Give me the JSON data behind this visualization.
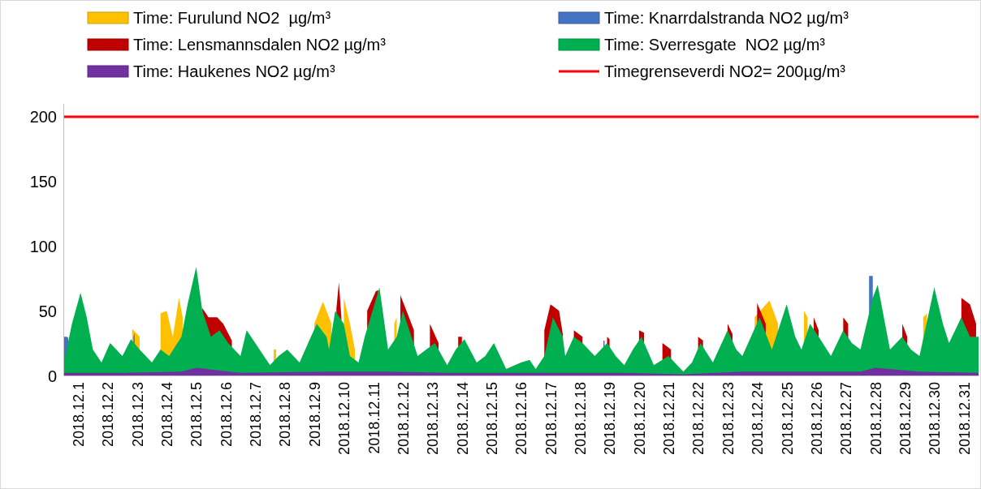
{
  "chart_data": {
    "type": "area",
    "xlim": [
      "2018-12-01T00:00",
      "2019-01-01T00:00"
    ],
    "ylim": [
      0,
      210
    ],
    "yticks": [
      0,
      50,
      100,
      150,
      200
    ],
    "xticks": [
      {
        "value": "2018-12-01T12:00",
        "label": "2018.12.1"
      },
      {
        "value": "2018-12-02T12:00",
        "label": "2018.12.2"
      },
      {
        "value": "2018-12-03T12:00",
        "label": "2018.12.3"
      },
      {
        "value": "2018-12-04T12:00",
        "label": "2018.12.4"
      },
      {
        "value": "2018-12-05T12:00",
        "label": "2018.12.5"
      },
      {
        "value": "2018-12-06T12:00",
        "label": "2018.12.6"
      },
      {
        "value": "2018-12-07T12:00",
        "label": "2018.12.7"
      },
      {
        "value": "2018-12-08T12:00",
        "label": "2018.12.8"
      },
      {
        "value": "2018-12-09T12:00",
        "label": "2018.12.9"
      },
      {
        "value": "2018-12-10T12:00",
        "label": "2018.12.10"
      },
      {
        "value": "2018-12-11T12:00",
        "label": "2018.12.11"
      },
      {
        "value": "2018-12-12T12:00",
        "label": "2018.12.12"
      },
      {
        "value": "2018-12-13T12:00",
        "label": "2018.12.13"
      },
      {
        "value": "2018-12-14T12:00",
        "label": "2018.12.14"
      },
      {
        "value": "2018-12-15T12:00",
        "label": "2018.12.15"
      },
      {
        "value": "2018-12-16T12:00",
        "label": "2018.12.16"
      },
      {
        "value": "2018-12-17T12:00",
        "label": "2018.12.17"
      },
      {
        "value": "2018-12-18T12:00",
        "label": "2018.12.18"
      },
      {
        "value": "2018-12-19T12:00",
        "label": "2018.12.19"
      },
      {
        "value": "2018-12-20T12:00",
        "label": "2018.12.20"
      },
      {
        "value": "2018-12-21T12:00",
        "label": "2018.12.21"
      },
      {
        "value": "2018-12-22T12:00",
        "label": "2018.12.22"
      },
      {
        "value": "2018-12-23T12:00",
        "label": "2018.12.23"
      },
      {
        "value": "2018-12-24T12:00",
        "label": "2018.12.24"
      },
      {
        "value": "2018-12-25T12:00",
        "label": "2018.12.25"
      },
      {
        "value": "2018-12-26T12:00",
        "label": "2018.12.26"
      },
      {
        "value": "2018-12-27T12:00",
        "label": "2018.12.27"
      },
      {
        "value": "2018-12-28T12:00",
        "label": "2018.12.28"
      },
      {
        "value": "2018-12-29T12:00",
        "label": "2018.12.29"
      },
      {
        "value": "2018-12-30T12:00",
        "label": "2018.12.30"
      },
      {
        "value": "2018-12-31T12:00",
        "label": "2018.12.31"
      }
    ],
    "grid": false,
    "legend": "top",
    "series": [
      {
        "name": "Time: Furulund NO2  µg/m³",
        "color": "#ffc000",
        "x": [
          "2018-12-03T08:00",
          "2018-12-03T14:00",
          "2018-12-03T20:00",
          "2018-12-04T07:00",
          "2018-12-04T12:00",
          "2018-12-04T17:00",
          "2018-12-04T22:00",
          "2018-12-05T01:00",
          "2018-12-06T12:00",
          "2018-12-08T03:00",
          "2018-12-08T05:00",
          "2018-12-09T00:00",
          "2018-12-09T12:00",
          "2018-12-09T19:00",
          "2018-12-10T02:00",
          "2018-12-10T11:00",
          "2018-12-10T12:00",
          "2018-12-10T17:00",
          "2018-12-10T21:00",
          "2018-12-11T12:00",
          "2018-12-12T05:00",
          "2018-12-12T07:00",
          "2018-12-15T00:00",
          "2018-12-24T10:00",
          "2018-12-24T22:00",
          "2018-12-25T05:00",
          "2018-12-25T15:00",
          "2018-12-26T02:00",
          "2018-12-26T05:00",
          "2018-12-28T00:00",
          "2018-12-30T03:00",
          "2018-12-30T06:00"
        ],
        "values": [
          36,
          30,
          null,
          48,
          50,
          30,
          60,
          45,
          null,
          20,
          20,
          null,
          40,
          57,
          40,
          null,
          60,
          40,
          20,
          null,
          40,
          45,
          null,
          45,
          58,
          40,
          null,
          50,
          45,
          null,
          45,
          48
        ]
      },
      {
        "name": "Time: Knarrdalstranda NO2 µg/m³",
        "color": "#4472c4",
        "x": [
          "2018-12-01T00:00",
          "2018-12-01T03:00",
          "2018-12-01T04:00",
          "2018-12-02T00:00",
          "2018-12-03T09:00",
          "2018-12-03T10:00",
          "2018-12-10T00:00",
          "2018-12-19T07:00",
          "2018-12-19T08:00",
          "2018-12-24T00:00",
          "2018-12-28T07:00",
          "2018-12-28T10:00"
        ],
        "values": [
          30,
          30,
          29,
          null,
          30,
          33,
          null,
          27,
          27,
          null,
          77,
          77
        ]
      },
      {
        "name": "Time: Lensmannsdalen NO2 µg/m³",
        "color": "#c00000",
        "x": [
          "2018-12-05T17:00",
          "2018-12-05T22:00",
          "2018-12-06T05:00",
          "2018-12-06T10:00",
          "2018-12-06T17:00",
          "2018-12-08T00:00",
          "2018-12-10T06:00",
          "2018-12-10T08:00",
          "2018-12-10T10:00",
          "2018-12-10T23:00",
          "2018-12-11T07:00",
          "2018-12-11T14:00",
          "2018-12-11T16:00",
          "2018-12-11T23:00",
          "2018-12-12T10:00",
          "2018-12-12T17:00",
          "2018-12-12T21:00",
          "2018-12-13T05:00",
          "2018-12-13T10:00",
          "2018-12-13T17:00",
          "2018-12-14T00:00",
          "2018-12-14T09:00",
          "2018-12-14T12:00",
          "2018-12-16T00:00",
          "2018-12-17T07:00",
          "2018-12-17T12:00",
          "2018-12-17T19:00",
          "2018-12-17T22:00",
          "2018-12-18T03:00",
          "2018-12-18T07:00",
          "2018-12-18T14:00",
          "2018-12-19T00:00",
          "2018-12-19T10:00",
          "2018-12-19T12:00",
          "2018-12-20T00:00",
          "2018-12-20T12:00",
          "2018-12-20T16:00",
          "2018-12-21T00:00",
          "2018-12-21T07:00",
          "2018-12-21T14:00",
          "2018-12-22T00:00",
          "2018-12-22T12:00",
          "2018-12-22T16:00",
          "2018-12-23T00:00",
          "2018-12-23T12:00",
          "2018-12-23T16:00",
          "2018-12-24T00:00",
          "2018-12-24T12:00",
          "2018-12-24T19:00",
          "2018-12-26T00:00",
          "2018-12-26T10:00",
          "2018-12-26T14:00",
          "2018-12-27T00:00",
          "2018-12-27T10:00",
          "2018-12-27T14:00",
          "2018-12-29T00:00",
          "2018-12-29T10:00",
          "2018-12-29T14:00",
          "2018-12-31T00:00",
          "2018-12-31T10:00",
          "2018-12-31T17:00",
          "2018-12-31T22:00"
        ],
        "values": [
          52,
          45,
          45,
          40,
          27,
          null,
          52,
          72,
          45,
          null,
          50,
          65,
          66,
          null,
          62,
          45,
          35,
          null,
          40,
          25,
          null,
          30,
          30,
          null,
          35,
          55,
          50,
          32,
          null,
          35,
          30,
          null,
          30,
          28,
          null,
          35,
          33,
          null,
          25,
          20,
          null,
          30,
          27,
          null,
          40,
          32,
          null,
          56,
          40,
          null,
          45,
          35,
          null,
          45,
          40,
          null,
          40,
          30,
          null,
          60,
          55,
          40
        ]
      },
      {
        "name": "Time: Sverresgate  NO2 µg/m³",
        "color": "#00b050",
        "x": [
          "2018-12-01T00:00",
          "2018-12-01T07:00",
          "2018-12-01T14:00",
          "2018-12-01T19:00",
          "2018-12-02T00:00",
          "2018-12-02T07:00",
          "2018-12-02T14:00",
          "2018-12-03T00:00",
          "2018-12-03T07:00",
          "2018-12-03T14:00",
          "2018-12-04T00:00",
          "2018-12-04T07:00",
          "2018-12-04T14:00",
          "2018-12-05T00:00",
          "2018-12-05T05:00",
          "2018-12-05T12:00",
          "2018-12-05T17:00",
          "2018-12-06T00:00",
          "2018-12-06T07:00",
          "2018-12-06T14:00",
          "2018-12-07T00:00",
          "2018-12-07T05:00",
          "2018-12-07T12:00",
          "2018-12-07T19:00",
          "2018-12-08T00:00",
          "2018-12-08T07:00",
          "2018-12-08T14:00",
          "2018-12-09T00:00",
          "2018-12-09T07:00",
          "2018-12-09T14:00",
          "2018-12-09T22:00",
          "2018-12-10T00:00",
          "2018-12-10T05:00",
          "2018-12-10T12:00",
          "2018-12-10T17:00",
          "2018-12-11T00:00",
          "2018-12-11T05:00",
          "2018-12-11T17:00",
          "2018-12-12T00:00",
          "2018-12-12T07:00",
          "2018-12-12T12:00",
          "2018-12-12T19:00",
          "2018-12-13T00:00",
          "2018-12-13T07:00",
          "2018-12-13T14:00",
          "2018-12-14T00:00",
          "2018-12-14T07:00",
          "2018-12-14T14:00",
          "2018-12-15T00:00",
          "2018-12-15T07:00",
          "2018-12-15T14:00",
          "2018-12-16T00:00",
          "2018-12-16T12:00",
          "2018-12-16T19:00",
          "2018-12-17T00:00",
          "2018-12-17T07:00",
          "2018-12-17T14:00",
          "2018-12-17T22:00",
          "2018-12-18T00:00",
          "2018-12-18T07:00",
          "2018-12-18T14:00",
          "2018-12-19T00:00",
          "2018-12-19T10:00",
          "2018-12-19T17:00",
          "2018-12-20T00:00",
          "2018-12-20T07:00",
          "2018-12-20T14:00",
          "2018-12-21T00:00",
          "2018-12-21T12:00",
          "2018-12-21T19:00",
          "2018-12-22T00:00",
          "2018-12-22T07:00",
          "2018-12-22T14:00",
          "2018-12-23T00:00",
          "2018-12-23T12:00",
          "2018-12-23T19:00",
          "2018-12-24T00:00",
          "2018-12-24T07:00",
          "2018-12-24T14:00",
          "2018-12-25T00:00",
          "2018-12-25T12:00",
          "2018-12-25T19:00",
          "2018-12-26T00:00",
          "2018-12-26T07:00",
          "2018-12-26T14:00",
          "2018-12-27T00:00",
          "2018-12-27T10:00",
          "2018-12-27T17:00",
          "2018-12-28T00:00",
          "2018-12-28T10:00",
          "2018-12-28T14:00",
          "2018-12-28T22:00",
          "2018-12-29T00:00",
          "2018-12-29T10:00",
          "2018-12-29T17:00",
          "2018-12-30T00:00",
          "2018-12-30T12:00",
          "2018-12-30T19:00",
          "2018-12-31T00:00",
          "2018-12-31T10:00",
          "2018-12-31T17:00",
          "2019-01-01T00:00"
        ],
        "values": [
          8,
          40,
          64,
          45,
          20,
          10,
          25,
          15,
          28,
          20,
          10,
          20,
          15,
          30,
          55,
          84,
          50,
          30,
          35,
          25,
          15,
          35,
          25,
          15,
          8,
          15,
          20,
          10,
          25,
          40,
          30,
          20,
          50,
          40,
          15,
          10,
          30,
          68,
          20,
          30,
          50,
          30,
          15,
          20,
          25,
          8,
          20,
          28,
          10,
          15,
          25,
          5,
          10,
          12,
          5,
          15,
          45,
          30,
          15,
          30,
          25,
          15,
          25,
          15,
          8,
          20,
          30,
          8,
          15,
          8,
          3,
          10,
          25,
          10,
          35,
          20,
          15,
          30,
          45,
          20,
          55,
          30,
          20,
          40,
          30,
          15,
          35,
          25,
          20,
          60,
          70,
          30,
          20,
          30,
          20,
          15,
          68,
          40,
          25,
          45,
          30,
          30
        ]
      },
      {
        "name": "Time: Haukenes NO2 µg/m³",
        "color": "#7030a0",
        "x": [
          "2018-12-01T00:00",
          "2018-12-03T00:00",
          "2018-12-05T00:00",
          "2018-12-05T12:00",
          "2018-12-07T00:00",
          "2018-12-10T00:00",
          "2018-12-12T00:00",
          "2018-12-14T00:00",
          "2018-12-17T00:00",
          "2018-12-20T00:00",
          "2018-12-22T00:00",
          "2018-12-24T00:00",
          "2018-12-26T00:00",
          "2018-12-28T00:00",
          "2018-12-28T12:00",
          "2018-12-30T00:00",
          "2019-01-01T00:00"
        ],
        "values": [
          2,
          2,
          3,
          6,
          2,
          3,
          3,
          2,
          2,
          2,
          1,
          3,
          3,
          3,
          6,
          3,
          2
        ]
      }
    ],
    "ref_lines": [
      {
        "axis": "y",
        "value": 200,
        "label": "Timegrenseverdi NO2= 200µg/m³",
        "color": "#ff0000"
      }
    ]
  }
}
